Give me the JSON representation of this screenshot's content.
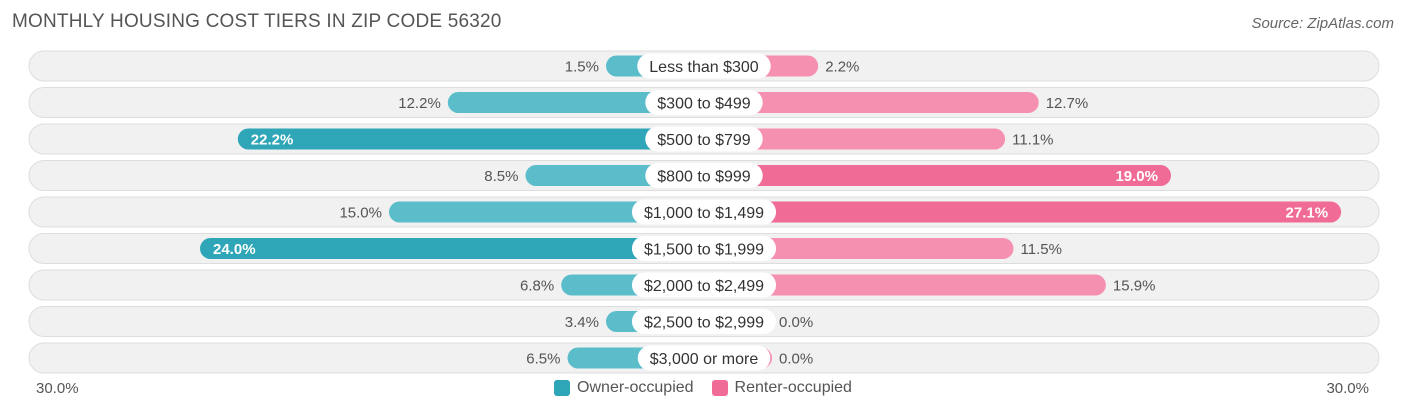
{
  "title": "MONTHLY HOUSING COST TIERS IN ZIP CODE 56320",
  "source": "Source: ZipAtlas.com",
  "colors": {
    "owner": "#5bbcca",
    "owner_dark": "#2fa6b7",
    "renter": "#f690b0",
    "renter_dark": "#f06b95",
    "row_bg": "#f1f1f1",
    "row_border": "#dddddd"
  },
  "chart_data": {
    "type": "bar",
    "orientation": "horizontal-diverging",
    "title": "MONTHLY HOUSING COST TIERS IN ZIP CODE 56320",
    "categories": [
      "Less than $300",
      "$300 to $499",
      "$500 to $799",
      "$800 to $999",
      "$1,000 to $1,499",
      "$1,500 to $1,999",
      "$2,000 to $2,499",
      "$2,500 to $2,999",
      "$3,000 or more"
    ],
    "series": [
      {
        "name": "Owner-occupied",
        "values": [
          1.5,
          12.2,
          22.2,
          8.5,
          15.0,
          24.0,
          6.8,
          3.4,
          6.5
        ],
        "labels": [
          "1.5%",
          "12.2%",
          "22.2%",
          "8.5%",
          "15.0%",
          "24.0%",
          "6.8%",
          "3.4%",
          "6.5%"
        ]
      },
      {
        "name": "Renter-occupied",
        "values": [
          2.2,
          12.7,
          11.1,
          19.0,
          27.1,
          11.5,
          15.9,
          0.0,
          0.0
        ],
        "labels": [
          "2.2%",
          "12.7%",
          "11.1%",
          "19.0%",
          "27.1%",
          "11.5%",
          "15.9%",
          "0.0%",
          "0.0%"
        ]
      }
    ],
    "axis_min_label": "30.0%",
    "axis_max_label": "30.0%",
    "xlim": [
      -30,
      30
    ],
    "legend": [
      "Owner-occupied",
      "Renter-occupied"
    ],
    "legend_position": "bottom"
  }
}
